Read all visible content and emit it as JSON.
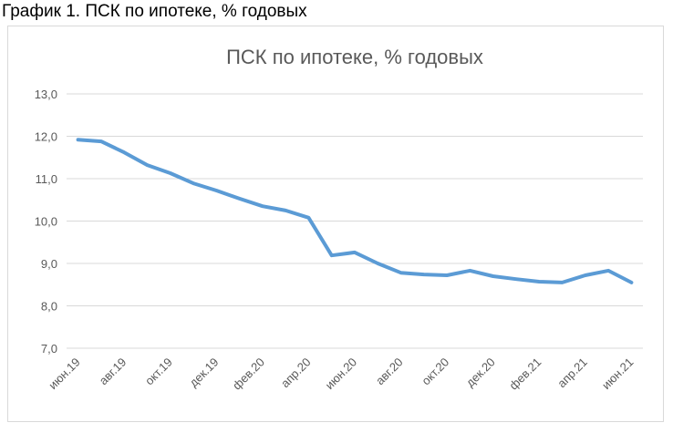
{
  "header": "График 1. ПСК по ипотеке, % годовых",
  "chart_data": {
    "type": "line",
    "title": "ПСК по ипотеке, % годовых",
    "categories": [
      "июн.19",
      null,
      "авг.19",
      null,
      "окт.19",
      null,
      "дек.19",
      null,
      "фев.20",
      null,
      "апр.20",
      null,
      "июн.20",
      null,
      "авг.20",
      null,
      "окт.20",
      null,
      "дек.20",
      null,
      "фев.21",
      null,
      "апр.21",
      null,
      "июн.21"
    ],
    "series": [
      {
        "name": "ПСК",
        "color": "#5b9bd5",
        "values": [
          11.92,
          11.88,
          11.62,
          11.32,
          11.13,
          10.89,
          10.72,
          10.53,
          10.35,
          10.25,
          10.08,
          9.19,
          9.26,
          9.0,
          8.78,
          8.74,
          8.72,
          8.83,
          8.7,
          8.63,
          8.57,
          8.55,
          8.72,
          8.83,
          8.55
        ]
      }
    ],
    "ylim": [
      7,
      13
    ],
    "yticks": [
      {
        "value": 7,
        "label": "7,0"
      },
      {
        "value": 8,
        "label": "8,0"
      },
      {
        "value": 9,
        "label": "9,0"
      },
      {
        "value": 10,
        "label": "10,0"
      },
      {
        "value": 11,
        "label": "11,0"
      },
      {
        "value": 12,
        "label": "12,0"
      },
      {
        "value": 13,
        "label": "13,0"
      }
    ],
    "grid": true
  }
}
